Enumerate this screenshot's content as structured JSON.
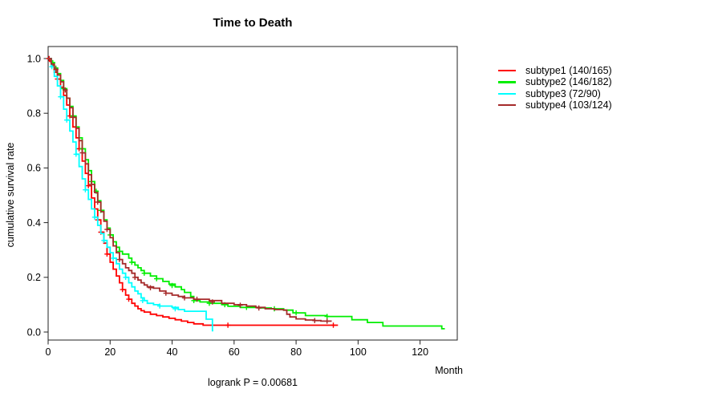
{
  "chart_data": {
    "type": "line",
    "subtype": "kaplan-meier-step-survival",
    "title": "Time to Death",
    "xlabel": "Month",
    "ylabel": "cumulative survival rate",
    "annotation": "logrank P = 0.00681",
    "xlim": [
      0,
      132
    ],
    "ylim": [
      0,
      1.04
    ],
    "x_ticks": [
      0,
      20,
      40,
      60,
      80,
      100,
      120
    ],
    "y_ticks": [
      0.0,
      0.2,
      0.4,
      0.6,
      0.8,
      1.0
    ],
    "grid": false,
    "legend_position": "outside-top-right",
    "axis_color": "#222222",
    "series": [
      {
        "name": "subtype1",
        "legend": "subtype1 (140/165)",
        "events": 140,
        "n": 165,
        "color": "#ff0000",
        "end": 93.5,
        "steps": [
          [
            0,
            1
          ],
          [
            0.5,
            0.99
          ],
          [
            1,
            0.975
          ],
          [
            2,
            0.95
          ],
          [
            3,
            0.925
          ],
          [
            4,
            0.895
          ],
          [
            5,
            0.865
          ],
          [
            6,
            0.83
          ],
          [
            7,
            0.79
          ],
          [
            8,
            0.75
          ],
          [
            9,
            0.71
          ],
          [
            10,
            0.67
          ],
          [
            11,
            0.625
          ],
          [
            12,
            0.58
          ],
          [
            13,
            0.535
          ],
          [
            14,
            0.49
          ],
          [
            15,
            0.45
          ],
          [
            16,
            0.41
          ],
          [
            17,
            0.365
          ],
          [
            18,
            0.325
          ],
          [
            19,
            0.285
          ],
          [
            20,
            0.255
          ],
          [
            21,
            0.23
          ],
          [
            22,
            0.205
          ],
          [
            23,
            0.18
          ],
          [
            24,
            0.155
          ],
          [
            25,
            0.135
          ],
          [
            26,
            0.12
          ],
          [
            27,
            0.105
          ],
          [
            28,
            0.095
          ],
          [
            29,
            0.085
          ],
          [
            30,
            0.078
          ],
          [
            31,
            0.073
          ],
          [
            33,
            0.065
          ],
          [
            35,
            0.06
          ],
          [
            37,
            0.055
          ],
          [
            39,
            0.05
          ],
          [
            41,
            0.045
          ],
          [
            43,
            0.04
          ],
          [
            45,
            0.035
          ],
          [
            47,
            0.03
          ],
          [
            50,
            0.025
          ]
        ],
        "censors": [
          [
            0.3,
            1
          ],
          [
            3,
            0.925
          ],
          [
            7,
            0.79
          ],
          [
            10,
            0.67
          ],
          [
            13,
            0.535
          ],
          [
            16,
            0.41
          ],
          [
            17,
            0.365
          ],
          [
            19,
            0.285
          ],
          [
            24,
            0.155
          ],
          [
            26,
            0.12
          ],
          [
            58,
            0.025
          ],
          [
            92,
            0.025
          ]
        ]
      },
      {
        "name": "subtype2",
        "legend": "subtype2 (146/182)",
        "events": 146,
        "n": 182,
        "color": "#00ee00",
        "end": 128,
        "steps": [
          [
            0,
            1
          ],
          [
            1,
            0.985
          ],
          [
            2,
            0.965
          ],
          [
            3,
            0.945
          ],
          [
            4,
            0.92
          ],
          [
            5,
            0.89
          ],
          [
            6,
            0.855
          ],
          [
            7,
            0.825
          ],
          [
            8,
            0.79
          ],
          [
            9,
            0.75
          ],
          [
            10,
            0.71
          ],
          [
            11,
            0.67
          ],
          [
            12,
            0.63
          ],
          [
            13,
            0.59
          ],
          [
            14,
            0.55
          ],
          [
            15,
            0.515
          ],
          [
            16,
            0.48
          ],
          [
            17,
            0.445
          ],
          [
            18,
            0.41
          ],
          [
            19,
            0.38
          ],
          [
            20,
            0.355
          ],
          [
            21,
            0.33
          ],
          [
            22,
            0.31
          ],
          [
            23,
            0.295
          ],
          [
            24,
            0.285
          ],
          [
            26,
            0.27
          ],
          [
            27,
            0.255
          ],
          [
            28,
            0.245
          ],
          [
            29,
            0.235
          ],
          [
            30,
            0.225
          ],
          [
            31,
            0.215
          ],
          [
            33,
            0.205
          ],
          [
            35,
            0.195
          ],
          [
            37,
            0.185
          ],
          [
            39,
            0.175
          ],
          [
            41,
            0.165
          ],
          [
            43,
            0.155
          ],
          [
            44,
            0.145
          ],
          [
            46,
            0.13
          ],
          [
            47,
            0.115
          ],
          [
            49,
            0.11
          ],
          [
            52,
            0.105
          ],
          [
            56,
            0.1
          ],
          [
            58,
            0.094
          ],
          [
            62,
            0.09
          ],
          [
            68,
            0.088
          ],
          [
            72,
            0.085
          ],
          [
            76,
            0.08
          ],
          [
            79,
            0.07
          ],
          [
            83,
            0.06
          ],
          [
            90,
            0.057
          ],
          [
            98,
            0.045
          ],
          [
            103,
            0.035
          ],
          [
            108,
            0.022
          ],
          [
            126,
            0.022
          ],
          [
            127,
            0.012
          ]
        ],
        "censors": [
          [
            1.5,
            0.985
          ],
          [
            2.5,
            0.965
          ],
          [
            5,
            0.89
          ],
          [
            8,
            0.79
          ],
          [
            11,
            0.67
          ],
          [
            14,
            0.55
          ],
          [
            15.5,
            0.515
          ],
          [
            17,
            0.445
          ],
          [
            20,
            0.355
          ],
          [
            23,
            0.295
          ],
          [
            27,
            0.255
          ],
          [
            31,
            0.215
          ],
          [
            35,
            0.195
          ],
          [
            40,
            0.17
          ],
          [
            47,
            0.115
          ],
          [
            52,
            0.105
          ],
          [
            57,
            0.1
          ],
          [
            64,
            0.09
          ],
          [
            73,
            0.085
          ],
          [
            80,
            0.07
          ],
          [
            90,
            0.057
          ]
        ]
      },
      {
        "name": "subtype3",
        "legend": "subtype3 (72/90)",
        "events": 72,
        "n": 90,
        "color": "#00ffff",
        "end": 53.3,
        "steps": [
          [
            0,
            1
          ],
          [
            1,
            0.97
          ],
          [
            2,
            0.935
          ],
          [
            3,
            0.9
          ],
          [
            4,
            0.86
          ],
          [
            5,
            0.815
          ],
          [
            6,
            0.775
          ],
          [
            7,
            0.735
          ],
          [
            8,
            0.695
          ],
          [
            9,
            0.65
          ],
          [
            10,
            0.605
          ],
          [
            11,
            0.56
          ],
          [
            12,
            0.52
          ],
          [
            13,
            0.485
          ],
          [
            14,
            0.45
          ],
          [
            15,
            0.42
          ],
          [
            16,
            0.39
          ],
          [
            17,
            0.36
          ],
          [
            18,
            0.335
          ],
          [
            19,
            0.31
          ],
          [
            20,
            0.29
          ],
          [
            21,
            0.27
          ],
          [
            22,
            0.25
          ],
          [
            23,
            0.23
          ],
          [
            24,
            0.215
          ],
          [
            25,
            0.2
          ],
          [
            26,
            0.18
          ],
          [
            27,
            0.165
          ],
          [
            28,
            0.15
          ],
          [
            29,
            0.14
          ],
          [
            30,
            0.125
          ],
          [
            31,
            0.115
          ],
          [
            32,
            0.105
          ],
          [
            34,
            0.1
          ],
          [
            36,
            0.095
          ],
          [
            40,
            0.09
          ],
          [
            42,
            0.082
          ],
          [
            44,
            0.076
          ],
          [
            51,
            0.047
          ],
          [
            53,
            0.005
          ]
        ],
        "censors": [
          [
            1.2,
            0.97
          ],
          [
            4,
            0.86
          ],
          [
            6,
            0.775
          ],
          [
            9,
            0.65
          ],
          [
            12,
            0.52
          ],
          [
            15,
            0.42
          ],
          [
            18,
            0.335
          ],
          [
            21,
            0.27
          ],
          [
            25,
            0.2
          ],
          [
            30.5,
            0.115
          ],
          [
            36,
            0.095
          ],
          [
            41,
            0.085
          ]
        ]
      },
      {
        "name": "subtype4",
        "legend": "subtype4 (103/124)",
        "events": 103,
        "n": 124,
        "color": "#a52a2a",
        "end": 91.5,
        "steps": [
          [
            0,
            1
          ],
          [
            1,
            0.98
          ],
          [
            2,
            0.96
          ],
          [
            3,
            0.94
          ],
          [
            4,
            0.915
          ],
          [
            5,
            0.885
          ],
          [
            6,
            0.855
          ],
          [
            7,
            0.82
          ],
          [
            8,
            0.785
          ],
          [
            9,
            0.745
          ],
          [
            10,
            0.7
          ],
          [
            11,
            0.655
          ],
          [
            12,
            0.615
          ],
          [
            13,
            0.575
          ],
          [
            14,
            0.54
          ],
          [
            15,
            0.51
          ],
          [
            16,
            0.475
          ],
          [
            17,
            0.44
          ],
          [
            18,
            0.405
          ],
          [
            19,
            0.375
          ],
          [
            20,
            0.345
          ],
          [
            21,
            0.315
          ],
          [
            22,
            0.29
          ],
          [
            23,
            0.265
          ],
          [
            24,
            0.25
          ],
          [
            25,
            0.235
          ],
          [
            26,
            0.225
          ],
          [
            27,
            0.215
          ],
          [
            28,
            0.2
          ],
          [
            29,
            0.19
          ],
          [
            30,
            0.18
          ],
          [
            31,
            0.172
          ],
          [
            32,
            0.165
          ],
          [
            34,
            0.16
          ],
          [
            36,
            0.15
          ],
          [
            38,
            0.142
          ],
          [
            40,
            0.135
          ],
          [
            42,
            0.13
          ],
          [
            44,
            0.125
          ],
          [
            47,
            0.12
          ],
          [
            52,
            0.115
          ],
          [
            56,
            0.105
          ],
          [
            60,
            0.1
          ],
          [
            64,
            0.095
          ],
          [
            67,
            0.09
          ],
          [
            70,
            0.085
          ],
          [
            73,
            0.082
          ],
          [
            76,
            0.08
          ],
          [
            77,
            0.065
          ],
          [
            78,
            0.055
          ],
          [
            80,
            0.048
          ],
          [
            83,
            0.044
          ],
          [
            86,
            0.042
          ],
          [
            88,
            0.04
          ]
        ],
        "censors": [
          [
            2.5,
            0.96
          ],
          [
            5.5,
            0.885
          ],
          [
            8,
            0.785
          ],
          [
            11,
            0.655
          ],
          [
            14,
            0.54
          ],
          [
            16,
            0.475
          ],
          [
            19,
            0.375
          ],
          [
            23,
            0.265
          ],
          [
            28,
            0.2
          ],
          [
            33,
            0.162
          ],
          [
            38,
            0.142
          ],
          [
            44,
            0.125
          ],
          [
            48,
            0.12
          ],
          [
            53,
            0.11
          ],
          [
            62,
            0.098
          ],
          [
            68,
            0.088
          ],
          [
            86,
            0.042
          ],
          [
            90,
            0.04
          ]
        ]
      }
    ]
  }
}
